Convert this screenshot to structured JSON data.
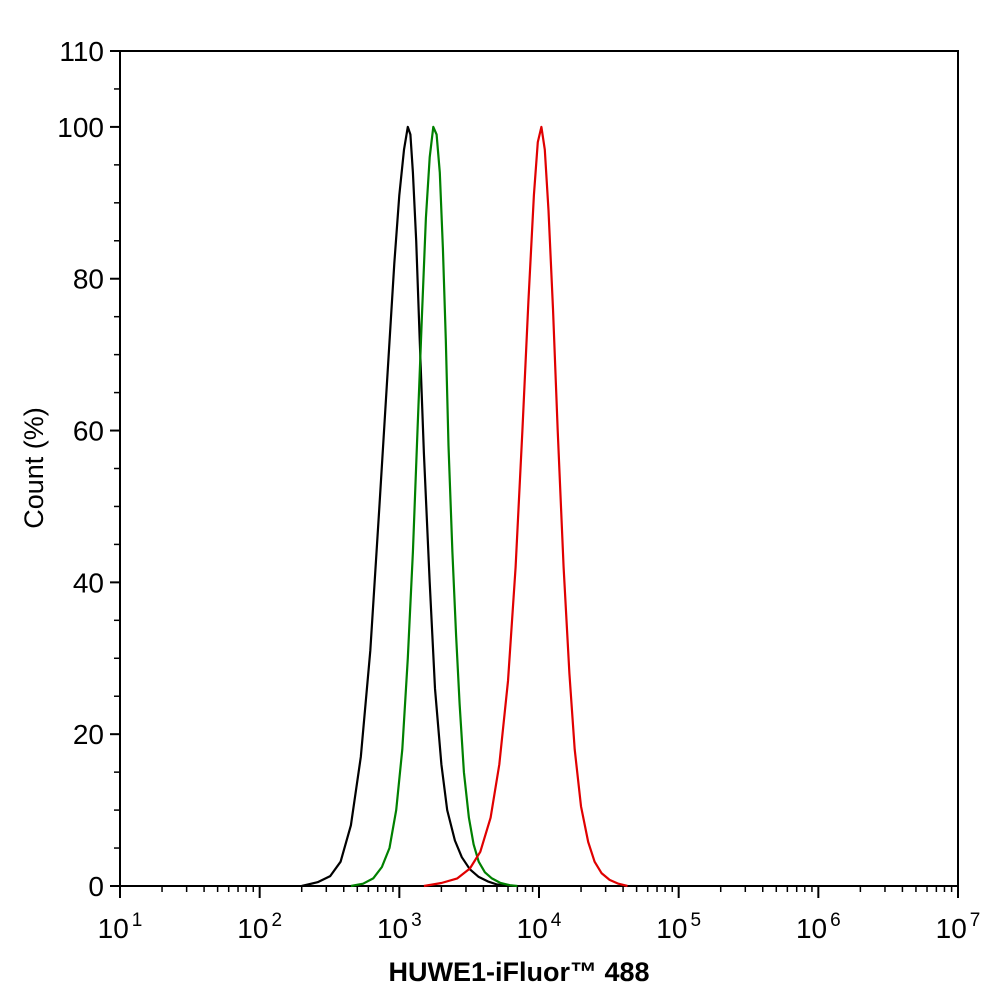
{
  "chart_data": {
    "type": "line",
    "title": "",
    "xlabel": "HUWE1-iFluor™ 488",
    "ylabel": "Count  (%)",
    "x_scale": "log10",
    "xlim": [
      10,
      10000000
    ],
    "ylim": [
      0,
      110
    ],
    "x_ticks": [
      {
        "base": "10",
        "exp": "1",
        "value": 10
      },
      {
        "base": "10",
        "exp": "2",
        "value": 100
      },
      {
        "base": "10",
        "exp": "3",
        "value": 1000
      },
      {
        "base": "10",
        "exp": "4",
        "value": 10000
      },
      {
        "base": "10",
        "exp": "5",
        "value": 100000
      },
      {
        "base": "10",
        "exp": "6",
        "value": 1000000
      },
      {
        "base": "10",
        "exp": "7",
        "value": 10000000
      }
    ],
    "y_ticks": [
      "0",
      "20",
      "40",
      "60",
      "80",
      "100",
      "110"
    ],
    "grid": false,
    "legend": "none",
    "series": [
      {
        "color": "#000000",
        "x": [
          200,
          260,
          320,
          380,
          450,
          530,
          620,
          720,
          820,
          920,
          1000,
          1080,
          1150,
          1200,
          1250,
          1320,
          1400,
          1500,
          1650,
          1800,
          2000,
          2200,
          2500,
          2800,
          3200,
          3700,
          4300,
          5000,
          6000
        ],
        "y": [
          0,
          0.5,
          1.3,
          3.2,
          8,
          17,
          31,
          50,
          67,
          82,
          91,
          97,
          100,
          99,
          94,
          85,
          72,
          57,
          40,
          26,
          16,
          10,
          6,
          3.8,
          2.2,
          1.2,
          0.6,
          0.2,
          0
        ]
      },
      {
        "color": "#008000",
        "x": [
          450,
          550,
          650,
          750,
          850,
          950,
          1050,
          1150,
          1250,
          1350,
          1450,
          1550,
          1650,
          1750,
          1850,
          1950,
          2050,
          2150,
          2250,
          2400,
          2550,
          2700,
          2900,
          3150,
          3400,
          3700,
          4100,
          4600,
          5300,
          6200,
          7000
        ],
        "y": [
          0,
          0.3,
          1,
          2.5,
          5,
          10,
          18,
          30,
          44,
          60,
          75,
          88,
          96,
          100,
          99,
          94,
          84,
          72,
          58,
          44,
          33,
          24,
          15,
          9,
          5.5,
          3.2,
          1.8,
          1,
          0.4,
          0.1,
          0
        ]
      },
      {
        "color": "#e00000",
        "x": [
          1500,
          2000,
          2600,
          3200,
          3800,
          4500,
          5200,
          6000,
          6800,
          7600,
          8400,
          9200,
          9800,
          10400,
          11000,
          11700,
          12600,
          13600,
          15000,
          16500,
          18000,
          20000,
          22500,
          25000,
          28000,
          32000,
          37000,
          43000
        ],
        "y": [
          0,
          0.4,
          1,
          2.3,
          4.5,
          9,
          16,
          27,
          42,
          60,
          77,
          91,
          98,
          100,
          97,
          89,
          76,
          60,
          42,
          28,
          18,
          10.5,
          5.8,
          3.2,
          1.7,
          0.8,
          0.3,
          0
        ]
      }
    ]
  }
}
